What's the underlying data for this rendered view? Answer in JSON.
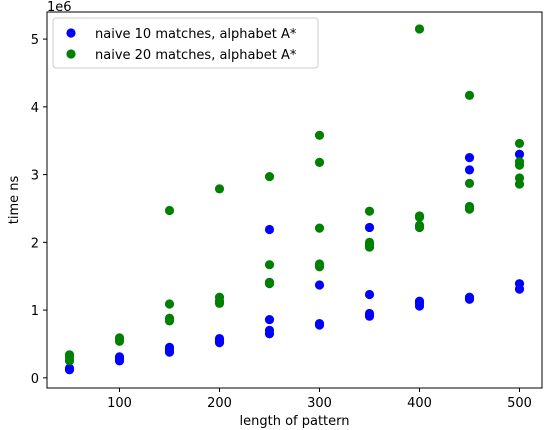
{
  "chart_data": {
    "type": "scatter",
    "title": "",
    "xlabel": "length of pattern",
    "ylabel": "time ns",
    "y_offset_label": "1e6",
    "xlim": [
      27.5,
      522.5
    ],
    "ylim": [
      -150000,
      5400000
    ],
    "x_ticks": [
      100,
      200,
      300,
      400,
      500
    ],
    "x_tick_labels": [
      "100",
      "200",
      "300",
      "400",
      "500"
    ],
    "y_ticks": [
      0,
      1000000,
      2000000,
      3000000,
      4000000,
      5000000
    ],
    "y_tick_labels": [
      "0",
      "1",
      "2",
      "3",
      "4",
      "5"
    ],
    "grid": false,
    "legend_position": "top-left",
    "series": [
      {
        "name": "naive 10 matches, alphabet A*",
        "color": "#0000ff",
        "points": [
          [
            50,
            130000
          ],
          [
            50,
            140000
          ],
          [
            50,
            120000
          ],
          [
            100,
            250000
          ],
          [
            100,
            280000
          ],
          [
            100,
            310000
          ],
          [
            150,
            380000
          ],
          [
            150,
            420000
          ],
          [
            150,
            450000
          ],
          [
            200,
            520000
          ],
          [
            200,
            550000
          ],
          [
            200,
            580000
          ],
          [
            250,
            650000
          ],
          [
            250,
            700000
          ],
          [
            250,
            860000
          ],
          [
            250,
            2190000
          ],
          [
            300,
            780000
          ],
          [
            300,
            800000
          ],
          [
            300,
            1370000
          ],
          [
            350,
            910000
          ],
          [
            350,
            950000
          ],
          [
            350,
            1230000
          ],
          [
            350,
            2220000
          ],
          [
            400,
            1060000
          ],
          [
            400,
            1100000
          ],
          [
            400,
            1130000
          ],
          [
            450,
            1160000
          ],
          [
            450,
            1190000
          ],
          [
            450,
            3070000
          ],
          [
            450,
            3250000
          ],
          [
            500,
            1310000
          ],
          [
            500,
            1390000
          ],
          [
            500,
            3300000
          ]
        ]
      },
      {
        "name": "naive 20 matches, alphabet A*",
        "color": "#008000",
        "points": [
          [
            50,
            250000
          ],
          [
            50,
            300000
          ],
          [
            50,
            340000
          ],
          [
            100,
            540000
          ],
          [
            100,
            560000
          ],
          [
            100,
            590000
          ],
          [
            150,
            840000
          ],
          [
            150,
            880000
          ],
          [
            150,
            1090000
          ],
          [
            150,
            2470000
          ],
          [
            200,
            1100000
          ],
          [
            200,
            1130000
          ],
          [
            200,
            1190000
          ],
          [
            200,
            2790000
          ],
          [
            250,
            1390000
          ],
          [
            250,
            1410000
          ],
          [
            250,
            1670000
          ],
          [
            250,
            2970000
          ],
          [
            300,
            1640000
          ],
          [
            300,
            1680000
          ],
          [
            300,
            2210000
          ],
          [
            300,
            3180000
          ],
          [
            300,
            3580000
          ],
          [
            350,
            1930000
          ],
          [
            350,
            1970000
          ],
          [
            350,
            2000000
          ],
          [
            350,
            2460000
          ],
          [
            400,
            2220000
          ],
          [
            400,
            2250000
          ],
          [
            400,
            2370000
          ],
          [
            400,
            2390000
          ],
          [
            400,
            5150000
          ],
          [
            450,
            2490000
          ],
          [
            450,
            2530000
          ],
          [
            450,
            2870000
          ],
          [
            450,
            4170000
          ],
          [
            500,
            2860000
          ],
          [
            500,
            2950000
          ],
          [
            500,
            3140000
          ],
          [
            500,
            3190000
          ],
          [
            500,
            3460000
          ]
        ]
      }
    ]
  }
}
